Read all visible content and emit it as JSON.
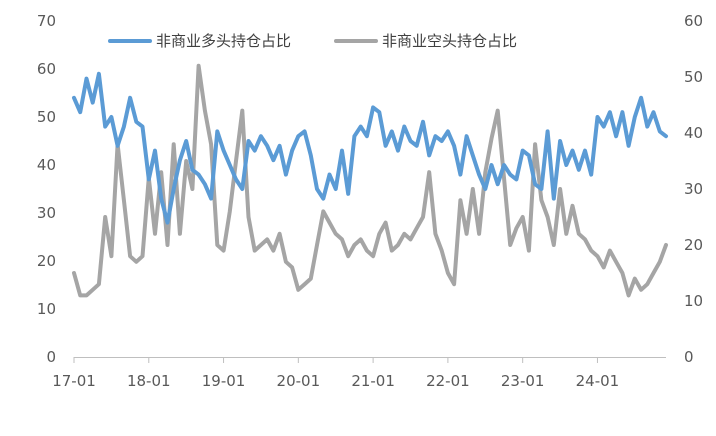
{
  "chart_data": {
    "type": "line",
    "title": "",
    "xlabel": "",
    "ylabel_left": "",
    "ylabel_right": "",
    "grid": false,
    "legend_position": "top",
    "x_range": [
      "2017-01",
      "2024-12"
    ],
    "x_ticks": [
      "17-01",
      "18-01",
      "19-01",
      "20-01",
      "21-01",
      "22-01",
      "23-01",
      "24-01"
    ],
    "y_left": {
      "min": 0,
      "max": 70,
      "ticks": [
        "0",
        "10",
        "20",
        "30",
        "40",
        "50",
        "60",
        "70"
      ]
    },
    "y_right": {
      "min": 0,
      "max": 60,
      "ticks": [
        "0",
        "10",
        "20",
        "30",
        "40",
        "50",
        "60"
      ]
    },
    "series": [
      {
        "name": "非商业多头持仓占比",
        "axis": "left",
        "color": "#5B9BD5",
        "points": [
          [
            "2017-01",
            54
          ],
          [
            "2017-02",
            51
          ],
          [
            "2017-03",
            58
          ],
          [
            "2017-04",
            53
          ],
          [
            "2017-05",
            59
          ],
          [
            "2017-06",
            48
          ],
          [
            "2017-07",
            50
          ],
          [
            "2017-08",
            44
          ],
          [
            "2017-09",
            48
          ],
          [
            "2017-10",
            54
          ],
          [
            "2017-11",
            49
          ],
          [
            "2017-12",
            48
          ],
          [
            "2018-01",
            37
          ],
          [
            "2018-02",
            43
          ],
          [
            "2018-03",
            33
          ],
          [
            "2018-04",
            28
          ],
          [
            "2018-05",
            35
          ],
          [
            "2018-06",
            41
          ],
          [
            "2018-07",
            45
          ],
          [
            "2018-08",
            39
          ],
          [
            "2018-09",
            38
          ],
          [
            "2018-10",
            36
          ],
          [
            "2018-11",
            33
          ],
          [
            "2018-12",
            47
          ],
          [
            "2019-01",
            43
          ],
          [
            "2019-02",
            40
          ],
          [
            "2019-03",
            37
          ],
          [
            "2019-04",
            35
          ],
          [
            "2019-05",
            45
          ],
          [
            "2019-06",
            43
          ],
          [
            "2019-07",
            46
          ],
          [
            "2019-08",
            44
          ],
          [
            "2019-09",
            41
          ],
          [
            "2019-10",
            44
          ],
          [
            "2019-11",
            38
          ],
          [
            "2019-12",
            43
          ],
          [
            "2020-01",
            46
          ],
          [
            "2020-02",
            47
          ],
          [
            "2020-03",
            42
          ],
          [
            "2020-04",
            35
          ],
          [
            "2020-05",
            33
          ],
          [
            "2020-06",
            38
          ],
          [
            "2020-07",
            35
          ],
          [
            "2020-08",
            43
          ],
          [
            "2020-09",
            34
          ],
          [
            "2020-10",
            46
          ],
          [
            "2020-11",
            48
          ],
          [
            "2020-12",
            46
          ],
          [
            "2021-01",
            52
          ],
          [
            "2021-02",
            51
          ],
          [
            "2021-03",
            44
          ],
          [
            "2021-04",
            47
          ],
          [
            "2021-05",
            43
          ],
          [
            "2021-06",
            48
          ],
          [
            "2021-07",
            45
          ],
          [
            "2021-08",
            44
          ],
          [
            "2021-09",
            49
          ],
          [
            "2021-10",
            42
          ],
          [
            "2021-11",
            46
          ],
          [
            "2021-12",
            45
          ],
          [
            "2022-01",
            47
          ],
          [
            "2022-02",
            44
          ],
          [
            "2022-03",
            38
          ],
          [
            "2022-04",
            46
          ],
          [
            "2022-05",
            42
          ],
          [
            "2022-06",
            38
          ],
          [
            "2022-07",
            35
          ],
          [
            "2022-08",
            40
          ],
          [
            "2022-09",
            36
          ],
          [
            "2022-10",
            40
          ],
          [
            "2022-11",
            38
          ],
          [
            "2022-12",
            37
          ],
          [
            "2023-01",
            43
          ],
          [
            "2023-02",
            42
          ],
          [
            "2023-03",
            36
          ],
          [
            "2023-04",
            35
          ],
          [
            "2023-05",
            47
          ],
          [
            "2023-06",
            33
          ],
          [
            "2023-07",
            45
          ],
          [
            "2023-08",
            40
          ],
          [
            "2023-09",
            43
          ],
          [
            "2023-10",
            39
          ],
          [
            "2023-11",
            43
          ],
          [
            "2023-12",
            38
          ],
          [
            "2024-01",
            50
          ],
          [
            "2024-02",
            48
          ],
          [
            "2024-03",
            51
          ],
          [
            "2024-04",
            46
          ],
          [
            "2024-05",
            51
          ],
          [
            "2024-06",
            44
          ],
          [
            "2024-07",
            50
          ],
          [
            "2024-08",
            54
          ],
          [
            "2024-09",
            48
          ],
          [
            "2024-10",
            51
          ],
          [
            "2024-11",
            47
          ],
          [
            "2024-12",
            46
          ]
        ]
      },
      {
        "name": "非商业空头持仓占比",
        "axis": "right",
        "color": "#A5A5A5",
        "points": [
          [
            "2017-01",
            15
          ],
          [
            "2017-02",
            11
          ],
          [
            "2017-03",
            11
          ],
          [
            "2017-04",
            12
          ],
          [
            "2017-05",
            13
          ],
          [
            "2017-06",
            25
          ],
          [
            "2017-07",
            18
          ],
          [
            "2017-08",
            38
          ],
          [
            "2017-09",
            28
          ],
          [
            "2017-10",
            18
          ],
          [
            "2017-11",
            17
          ],
          [
            "2017-12",
            18
          ],
          [
            "2018-01",
            32
          ],
          [
            "2018-02",
            22
          ],
          [
            "2018-03",
            33
          ],
          [
            "2018-04",
            20
          ],
          [
            "2018-05",
            38
          ],
          [
            "2018-06",
            22
          ],
          [
            "2018-07",
            35
          ],
          [
            "2018-08",
            30
          ],
          [
            "2018-09",
            52
          ],
          [
            "2018-10",
            44
          ],
          [
            "2018-11",
            38
          ],
          [
            "2018-12",
            20
          ],
          [
            "2019-01",
            19
          ],
          [
            "2019-02",
            26
          ],
          [
            "2019-03",
            35
          ],
          [
            "2019-04",
            44
          ],
          [
            "2019-05",
            25
          ],
          [
            "2019-06",
            19
          ],
          [
            "2019-07",
            20
          ],
          [
            "2019-08",
            21
          ],
          [
            "2019-09",
            19
          ],
          [
            "2019-10",
            22
          ],
          [
            "2019-11",
            17
          ],
          [
            "2019-12",
            16
          ],
          [
            "2020-01",
            12
          ],
          [
            "2020-02",
            13
          ],
          [
            "2020-03",
            14
          ],
          [
            "2020-04",
            20
          ],
          [
            "2020-05",
            26
          ],
          [
            "2020-06",
            24
          ],
          [
            "2020-07",
            22
          ],
          [
            "2020-08",
            21
          ],
          [
            "2020-09",
            18
          ],
          [
            "2020-10",
            20
          ],
          [
            "2020-11",
            21
          ],
          [
            "2020-12",
            19
          ],
          [
            "2021-01",
            18
          ],
          [
            "2021-02",
            22
          ],
          [
            "2021-03",
            24
          ],
          [
            "2021-04",
            19
          ],
          [
            "2021-05",
            20
          ],
          [
            "2021-06",
            22
          ],
          [
            "2021-07",
            21
          ],
          [
            "2021-08",
            23
          ],
          [
            "2021-09",
            25
          ],
          [
            "2021-10",
            33
          ],
          [
            "2021-11",
            22
          ],
          [
            "2021-12",
            19
          ],
          [
            "2022-01",
            15
          ],
          [
            "2022-02",
            13
          ],
          [
            "2022-03",
            28
          ],
          [
            "2022-04",
            22
          ],
          [
            "2022-05",
            30
          ],
          [
            "2022-06",
            22
          ],
          [
            "2022-07",
            33
          ],
          [
            "2022-08",
            39
          ],
          [
            "2022-09",
            44
          ],
          [
            "2022-10",
            32
          ],
          [
            "2022-11",
            20
          ],
          [
            "2022-12",
            23
          ],
          [
            "2023-01",
            25
          ],
          [
            "2023-02",
            19
          ],
          [
            "2023-03",
            38
          ],
          [
            "2023-04",
            28
          ],
          [
            "2023-05",
            25
          ],
          [
            "2023-06",
            20
          ],
          [
            "2023-07",
            30
          ],
          [
            "2023-08",
            22
          ],
          [
            "2023-09",
            27
          ],
          [
            "2023-10",
            22
          ],
          [
            "2023-11",
            21
          ],
          [
            "2023-12",
            19
          ],
          [
            "2024-01",
            18
          ],
          [
            "2024-02",
            16
          ],
          [
            "2024-03",
            19
          ],
          [
            "2024-04",
            17
          ],
          [
            "2024-05",
            15
          ],
          [
            "2024-06",
            11
          ],
          [
            "2024-07",
            14
          ],
          [
            "2024-08",
            12
          ],
          [
            "2024-09",
            13
          ],
          [
            "2024-10",
            15
          ],
          [
            "2024-11",
            17
          ],
          [
            "2024-12",
            20
          ]
        ]
      }
    ]
  }
}
